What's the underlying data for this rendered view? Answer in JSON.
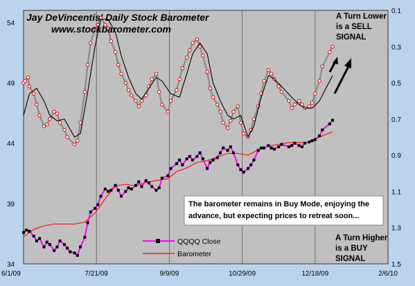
{
  "chart_data": {
    "type": "line",
    "title": "Jay DeVincentis' Daily Stock Barometer",
    "subtitle": "www.stockbarometer.com",
    "x_ticks": [
      "6/1/09",
      "7/21/09",
      "9/9/09",
      "10/29/09",
      "12/18/09",
      "2/6/10"
    ],
    "y_left_ticks": [
      "34",
      "39",
      "44",
      "49",
      "54"
    ],
    "y_right_ticks": [
      "0.1",
      "0.3",
      "0.5",
      "0.7",
      "0.9",
      "1.1",
      "1.3",
      "1.5"
    ],
    "ylim_left": [
      34,
      55
    ],
    "ylim_right_inverted": [
      0.1,
      1.5
    ],
    "vertical_gridlines": [
      "7/21/09",
      "9/9/09",
      "10/29/09",
      "12/18/09"
    ],
    "series": [
      {
        "name": "QQQQ Close",
        "axis": "left",
        "color": "#ff00ff",
        "marker": "black-square",
        "x": [
          "6/1/09",
          "6/3/09",
          "6/5/09",
          "6/8/09",
          "6/10/09",
          "6/12/09",
          "6/15/09",
          "6/17/09",
          "6/19/09",
          "6/22/09",
          "6/24/09",
          "6/26/09",
          "6/29/09",
          "7/1/09",
          "7/3/09",
          "7/6/09",
          "7/8/09",
          "7/10/09",
          "7/13/09",
          "7/15/09",
          "7/17/09",
          "7/20/09",
          "7/22/09",
          "7/24/09",
          "7/27/09",
          "7/29/09",
          "7/31/09",
          "8/3/09",
          "8/5/09",
          "8/7/09",
          "8/10/09",
          "8/12/09",
          "8/14/09",
          "8/17/09",
          "8/19/09",
          "8/21/09",
          "8/24/09",
          "8/26/09",
          "8/28/09",
          "8/31/09",
          "9/2/09",
          "9/4/09",
          "9/8/09",
          "9/10/09",
          "9/14/09",
          "9/16/09",
          "9/18/09",
          "9/21/09",
          "9/23/09",
          "9/25/09",
          "9/28/09",
          "9/30/09",
          "10/2/09",
          "10/5/09",
          "10/7/09",
          "10/9/09",
          "10/12/09",
          "10/14/09",
          "10/16/09",
          "10/19/09",
          "10/21/09",
          "10/23/09",
          "10/26/09",
          "10/28/09",
          "10/30/09",
          "11/2/09",
          "11/4/09",
          "11/6/09",
          "11/9/09",
          "11/11/09",
          "11/13/09",
          "11/16/09",
          "11/18/09",
          "11/20/09",
          "11/23/09",
          "11/25/09",
          "11/30/09",
          "12/2/09",
          "12/4/09",
          "12/7/09",
          "12/9/09",
          "12/11/09",
          "12/14/09",
          "12/16/09",
          "12/18/09",
          "12/21/09",
          "12/23/09",
          "12/28/09",
          "12/30/09"
        ],
        "values": [
          36.6,
          36.8,
          36.7,
          36.3,
          35.9,
          36.1,
          35.4,
          35.8,
          35.6,
          35.1,
          35.4,
          35.9,
          35.6,
          35.3,
          35.0,
          34.9,
          34.7,
          35.4,
          36.2,
          37.4,
          38.3,
          38.6,
          38.9,
          39.6,
          40.2,
          40.0,
          40.1,
          40.5,
          40.1,
          39.6,
          40.0,
          40.3,
          40.2,
          40.5,
          40.8,
          40.4,
          40.9,
          40.7,
          40.4,
          40.1,
          40.3,
          41.1,
          41.3,
          41.9,
          42.3,
          42.6,
          42.2,
          42.7,
          42.9,
          42.6,
          42.9,
          43.2,
          42.7,
          41.9,
          42.4,
          42.6,
          42.8,
          43.2,
          43.6,
          43.4,
          43.7,
          43.2,
          42.2,
          41.8,
          41.6,
          41.9,
          42.2,
          42.6,
          43.4,
          43.6,
          43.6,
          43.8,
          43.6,
          43.5,
          43.7,
          43.9,
          43.7,
          43.8,
          44.0,
          43.8,
          43.7,
          44.0,
          44.1,
          44.2,
          44.3,
          44.6,
          45.1,
          45.6,
          45.9
        ]
      },
      {
        "name": "Barometer",
        "axis": "right",
        "color": "#ff0000",
        "marker": "none",
        "x": [
          "6/1/09",
          "6/8/09",
          "6/15/09",
          "6/22/09",
          "6/29/09",
          "7/6/09",
          "7/13/09",
          "7/20/09",
          "7/27/09",
          "8/3/09",
          "8/10/09",
          "8/17/09",
          "8/24/09",
          "8/31/09",
          "9/8/09",
          "9/14/09",
          "9/21/09",
          "9/28/09",
          "10/5/09",
          "10/12/09",
          "10/19/09",
          "10/26/09",
          "11/2/09",
          "11/9/09",
          "11/16/09",
          "11/23/09",
          "11/30/09",
          "12/7/09",
          "12/14/09",
          "12/21/09",
          "12/30/09"
        ],
        "values": [
          1.35,
          1.31,
          1.29,
          1.28,
          1.28,
          1.28,
          1.27,
          1.22,
          1.14,
          1.07,
          1.06,
          1.07,
          1.05,
          1.04,
          1.03,
          0.99,
          0.97,
          0.94,
          0.93,
          0.91,
          0.89,
          0.89,
          0.9,
          0.87,
          0.85,
          0.84,
          0.83,
          0.83,
          0.83,
          0.8,
          0.77
        ]
      }
    ],
    "unlabeled_series": [
      {
        "axis": "right",
        "style": "gray-line-red-markers",
        "x": [
          "6/1/09",
          "6/2/09",
          "6/4/09",
          "6/5/09",
          "6/8/09",
          "6/10/09",
          "6/12/09",
          "6/15/09",
          "6/17/09",
          "6/19/09",
          "6/22/09",
          "6/24/09",
          "6/26/09",
          "6/29/09",
          "7/1/09",
          "7/6/09",
          "7/8/09",
          "7/10/09",
          "7/13/09",
          "7/15/09",
          "7/17/09",
          "7/20/09",
          "7/22/09",
          "7/24/09",
          "7/27/09",
          "7/29/09",
          "7/31/09",
          "8/3/09",
          "8/5/09",
          "8/7/09",
          "8/10/09",
          "8/12/09",
          "8/14/09",
          "8/17/09",
          "8/19/09",
          "8/21/09",
          "8/24/09",
          "8/26/09",
          "8/28/09",
          "8/31/09",
          "9/2/09",
          "9/4/09",
          "9/8/09",
          "9/10/09",
          "9/14/09",
          "9/16/09",
          "9/18/09",
          "9/21/09",
          "9/23/09",
          "9/25/09",
          "9/28/09",
          "9/30/09",
          "10/2/09",
          "10/5/09",
          "10/7/09",
          "10/9/09",
          "10/12/09",
          "10/14/09",
          "10/16/09",
          "10/19/09",
          "10/21/09",
          "10/23/09",
          "10/26/09",
          "10/28/09",
          "10/30/09",
          "11/2/09",
          "11/4/09",
          "11/6/09",
          "11/9/09",
          "11/11/09",
          "11/13/09",
          "11/16/09",
          "11/18/09",
          "11/20/09",
          "11/23/09",
          "11/25/09",
          "11/30/09",
          "12/2/09",
          "12/4/09",
          "12/7/09",
          "12/9/09",
          "12/11/09",
          "12/14/09",
          "12/16/09",
          "12/18/09",
          "12/21/09",
          "12/23/09",
          "12/28/09",
          "12/30/09"
        ],
        "values": [
          0.5,
          0.49,
          0.47,
          0.52,
          0.56,
          0.62,
          0.68,
          0.74,
          0.73,
          0.7,
          0.66,
          0.67,
          0.72,
          0.76,
          0.8,
          0.84,
          0.82,
          0.72,
          0.55,
          0.4,
          0.28,
          0.2,
          0.18,
          0.14,
          0.18,
          0.2,
          0.27,
          0.33,
          0.4,
          0.45,
          0.5,
          0.54,
          0.57,
          0.6,
          0.63,
          0.6,
          0.57,
          0.52,
          0.48,
          0.45,
          0.55,
          0.62,
          0.66,
          0.6,
          0.54,
          0.48,
          0.42,
          0.36,
          0.32,
          0.28,
          0.26,
          0.3,
          0.35,
          0.44,
          0.53,
          0.58,
          0.62,
          0.66,
          0.72,
          0.75,
          0.71,
          0.66,
          0.63,
          0.72,
          0.78,
          0.8,
          0.76,
          0.7,
          0.63,
          0.56,
          0.49,
          0.43,
          0.45,
          0.48,
          0.52,
          0.55,
          0.6,
          0.64,
          0.62,
          0.6,
          0.62,
          0.64,
          0.63,
          0.61,
          0.56,
          0.49,
          0.41,
          0.33,
          0.3
        ]
      },
      {
        "axis": "right",
        "style": "black-line",
        "x": [
          "6/1/09",
          "6/5/09",
          "6/10/09",
          "6/15/09",
          "6/19/09",
          "6/24/09",
          "6/29/09",
          "7/6/09",
          "7/10/09",
          "7/15/09",
          "7/20/09",
          "7/24/09",
          "7/29/09",
          "8/3/09",
          "8/7/09",
          "8/12/09",
          "8/17/09",
          "8/21/09",
          "8/26/09",
          "8/31/09",
          "9/4/09",
          "9/10/09",
          "9/16/09",
          "9/21/09",
          "9/25/09",
          "9/30/09",
          "10/5/09",
          "10/9/09",
          "10/14/09",
          "10/19/09",
          "10/23/09",
          "10/28/09",
          "11/2/09",
          "11/6/09",
          "11/11/09",
          "11/16/09",
          "11/20/09",
          "11/25/09",
          "12/2/09",
          "12/7/09",
          "12/11/09",
          "12/16/09",
          "12/21/09",
          "12/30/09"
        ],
        "values": [
          0.68,
          0.56,
          0.53,
          0.6,
          0.68,
          0.71,
          0.7,
          0.8,
          0.78,
          0.55,
          0.3,
          0.15,
          0.15,
          0.22,
          0.35,
          0.47,
          0.56,
          0.59,
          0.53,
          0.47,
          0.49,
          0.56,
          0.58,
          0.45,
          0.34,
          0.28,
          0.34,
          0.5,
          0.6,
          0.68,
          0.7,
          0.68,
          0.8,
          0.74,
          0.58,
          0.46,
          0.48,
          0.52,
          0.58,
          0.62,
          0.64,
          0.64,
          0.6,
          0.46
        ]
      }
    ],
    "annotations": {
      "sell_signal": [
        "A Turn Lower",
        "is a SELL",
        "SIGNAL"
      ],
      "buy_signal": [
        "A Turn Higher",
        "is a BUY",
        "SIGNAL"
      ],
      "note": [
        "The barometer remains in Buy Mode, enjoying the",
        "advance, but expecting prices to retreat soon..."
      ]
    },
    "legend": [
      {
        "name": "QQQQ Close",
        "color": "#ff00ff",
        "marker": "black-square"
      },
      {
        "name": "Barometer",
        "color": "#ff0000",
        "marker": "none"
      }
    ],
    "grid": "vertical-only",
    "colors": {
      "plot_bg": "#c0c0c0",
      "outer_bg": "#bcd3ee"
    }
  }
}
